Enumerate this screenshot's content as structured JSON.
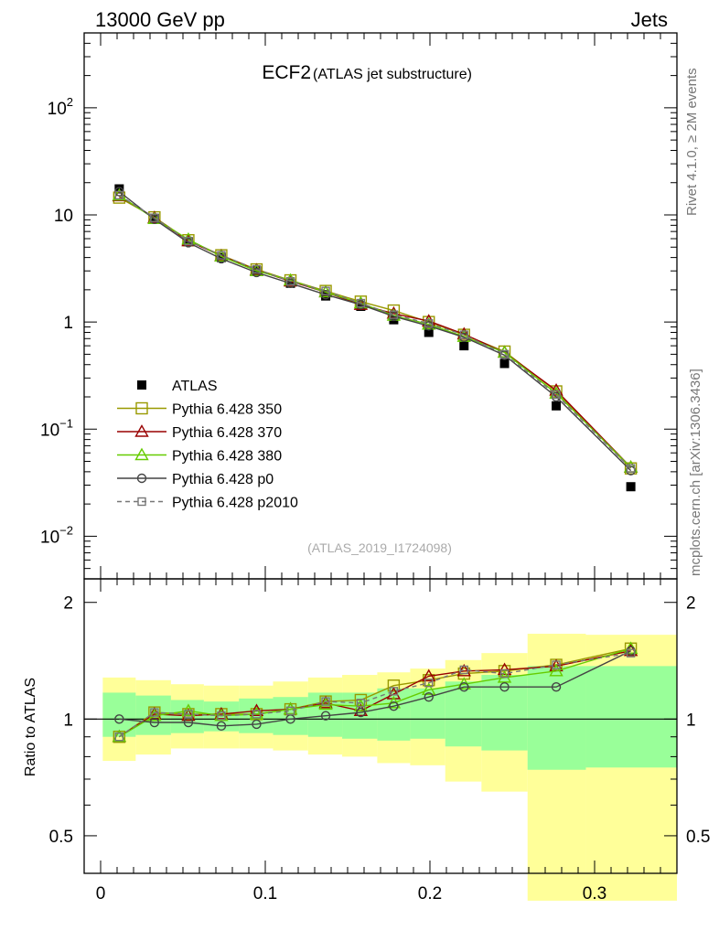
{
  "header": {
    "left": "13000 GeV pp",
    "right": "Jets"
  },
  "side": {
    "rivet": "Rivet 4.1.0, ≥ 2M events",
    "mcplots": "mcplots.cern.ch [arXiv:1306.3436]"
  },
  "chart_data": [
    {
      "type": "line",
      "title": "ECF2",
      "subtitle": "(ATLAS jet substructure)",
      "analysis_label": "(ATLAS_2019_I1724098)",
      "yscale": "log",
      "ylim": [
        0.004,
        500
      ],
      "xlim": [
        -0.01,
        0.35
      ],
      "ytick_labels": [
        {
          "y": 0.01,
          "base": "10",
          "exp": "−2"
        },
        {
          "y": 0.1,
          "base": "10",
          "exp": "−1"
        },
        {
          "y": 1,
          "base": "1",
          "exp": ""
        },
        {
          "y": 10,
          "base": "10",
          "exp": ""
        },
        {
          "y": 100,
          "base": "10",
          "exp": "2"
        }
      ],
      "x": [
        0.0113,
        0.0327,
        0.0533,
        0.0733,
        0.0947,
        0.1153,
        0.1367,
        0.158,
        0.178,
        0.1993,
        0.2207,
        0.2453,
        0.2767,
        0.322
      ],
      "series": [
        {
          "name": "ATLAS",
          "color": "#000000",
          "marker": "filled-square",
          "values": [
            17.5,
            9.3,
            5.6,
            4.0,
            3.0,
            2.3,
            1.75,
            1.4,
            1.05,
            0.8,
            0.6,
            0.41,
            0.165,
            0.029
          ]
        },
        {
          "name": "Pythia 6.428 350",
          "color": "#999900",
          "marker": "open-square",
          "values": [
            14.5,
            9.5,
            5.8,
            4.2,
            3.1,
            2.45,
            1.95,
            1.55,
            1.28,
            1.0,
            0.76,
            0.53,
            0.225,
            0.043
          ]
        },
        {
          "name": "Pythia 6.428 370",
          "color": "#990000",
          "marker": "open-triangle",
          "values": [
            15.0,
            9.4,
            5.7,
            4.15,
            3.05,
            2.4,
            1.9,
            1.45,
            1.2,
            1.02,
            0.77,
            0.52,
            0.23,
            0.044
          ]
        },
        {
          "name": "Pythia 6.428 380",
          "color": "#66cc00",
          "marker": "open-triangle",
          "values": [
            15.2,
            9.2,
            5.9,
            4.1,
            3.0,
            2.45,
            1.9,
            1.5,
            1.15,
            0.95,
            0.73,
            0.52,
            0.215,
            0.044
          ]
        },
        {
          "name": "Pythia 6.428 p0",
          "color": "#444444",
          "marker": "open-circle",
          "values": [
            16.5,
            9.1,
            5.5,
            3.9,
            2.9,
            2.3,
            1.8,
            1.45,
            1.13,
            0.92,
            0.72,
            0.49,
            0.2,
            0.041
          ]
        },
        {
          "name": "Pythia 6.428 p2010",
          "color": "#777777",
          "marker": "open-square-small",
          "dashed": true,
          "values": [
            15.3,
            9.4,
            5.7,
            4.2,
            3.1,
            2.4,
            1.95,
            1.5,
            1.17,
            0.97,
            0.76,
            0.5,
            0.21,
            0.043
          ]
        }
      ]
    },
    {
      "type": "line",
      "ylabel": "Ratio to ATLAS",
      "xlabel": "",
      "ylim": [
        0.4,
        2.3
      ],
      "xlim": [
        -0.01,
        0.35
      ],
      "yticks": [
        0.5,
        1,
        2
      ],
      "ytick_labels": [
        "0.5",
        "1",
        "2"
      ],
      "xticks": [
        0,
        0.1,
        0.2,
        0.3
      ],
      "xtick_labels": [
        "0",
        "0.1",
        "0.2",
        "0.3"
      ],
      "bins": [
        [
          0.0013,
          0.0213
        ],
        [
          0.0213,
          0.0427
        ],
        [
          0.0427,
          0.0627
        ],
        [
          0.0627,
          0.084
        ],
        [
          0.084,
          0.1047
        ],
        [
          0.1047,
          0.126
        ],
        [
          0.126,
          0.1467
        ],
        [
          0.1467,
          0.168
        ],
        [
          0.168,
          0.188
        ],
        [
          0.188,
          0.2093
        ],
        [
          0.2093,
          0.2313
        ],
        [
          0.2313,
          0.2593
        ],
        [
          0.2593,
          0.2947
        ],
        [
          0.2947,
          0.35
        ]
      ],
      "band_stat": [
        [
          0.9,
          1.17
        ],
        [
          0.91,
          1.15
        ],
        [
          0.92,
          1.12
        ],
        [
          0.93,
          1.11
        ],
        [
          0.92,
          1.13
        ],
        [
          0.91,
          1.14
        ],
        [
          0.9,
          1.17
        ],
        [
          0.89,
          1.17
        ],
        [
          0.88,
          1.2
        ],
        [
          0.89,
          1.2
        ],
        [
          0.85,
          1.25
        ],
        [
          0.83,
          1.3
        ],
        [
          0.74,
          1.37
        ],
        [
          0.75,
          1.37
        ]
      ],
      "band_total": [
        [
          0.78,
          1.28
        ],
        [
          0.81,
          1.26
        ],
        [
          0.84,
          1.23
        ],
        [
          0.84,
          1.22
        ],
        [
          0.84,
          1.22
        ],
        [
          0.83,
          1.25
        ],
        [
          0.81,
          1.28
        ],
        [
          0.8,
          1.3
        ],
        [
          0.77,
          1.32
        ],
        [
          0.76,
          1.35
        ],
        [
          0.69,
          1.42
        ],
        [
          0.65,
          1.48
        ],
        [
          0.34,
          1.66
        ],
        [
          0.34,
          1.65
        ]
      ],
      "series": [
        {
          "name": "Pythia 6.428 350",
          "color": "#999900",
          "marker": "open-square",
          "values": [
            0.9,
            1.04,
            1.03,
            1.03,
            1.03,
            1.06,
            1.11,
            1.12,
            1.22,
            1.26,
            1.31,
            1.33,
            1.38,
            1.52
          ]
        },
        {
          "name": "Pythia 6.428 370",
          "color": "#990000",
          "marker": "open-triangle",
          "values": [
            0.9,
            1.03,
            1.02,
            1.03,
            1.05,
            1.06,
            1.1,
            1.05,
            1.16,
            1.29,
            1.33,
            1.34,
            1.37,
            1.5
          ]
        },
        {
          "name": "Pythia 6.428 380",
          "color": "#66cc00",
          "marker": "open-triangle",
          "values": [
            0.9,
            1.02,
            1.05,
            1.02,
            1.03,
            1.06,
            1.09,
            1.08,
            1.1,
            1.19,
            1.23,
            1.28,
            1.33,
            1.52
          ]
        },
        {
          "name": "Pythia 6.428 p0",
          "color": "#444444",
          "marker": "open-circle",
          "values": [
            1.0,
            0.98,
            0.98,
            0.96,
            0.97,
            1.0,
            1.02,
            1.04,
            1.08,
            1.14,
            1.21,
            1.21,
            1.21,
            1.5
          ]
        },
        {
          "name": "Pythia 6.428 p2010",
          "color": "#777777",
          "marker": "open-square-small",
          "dashed": true,
          "values": [
            0.9,
            1.04,
            1.03,
            1.02,
            1.03,
            1.05,
            1.11,
            1.1,
            1.18,
            1.24,
            1.34,
            1.31,
            1.38,
            1.48
          ]
        }
      ]
    }
  ]
}
